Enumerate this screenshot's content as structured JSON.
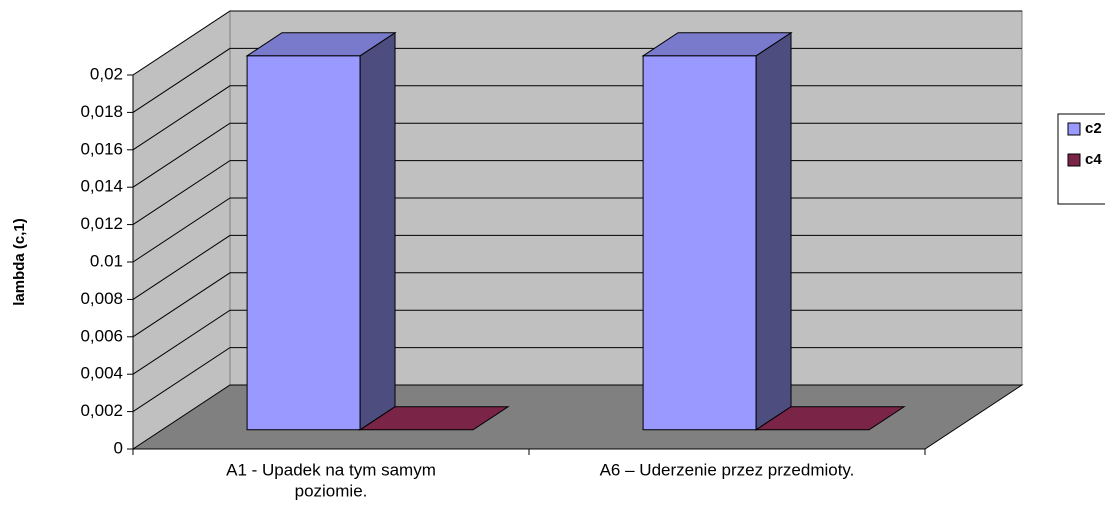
{
  "chart_data": {
    "type": "bar3d",
    "ylabel": "lambda (c,1)",
    "categories": [
      [
        "A1 - Upadek na tym samym",
        "poziomie."
      ],
      [
        "A6 – Uderzenie przez przedmioty."
      ]
    ],
    "series": [
      {
        "name": "c2",
        "color": "#9999ff",
        "values": [
          0.02,
          0.02
        ]
      },
      {
        "name": "c4",
        "color": "#7a2448",
        "values": [
          0,
          0
        ]
      }
    ],
    "ylim": [
      0,
      0.02
    ],
    "yticks": [
      0,
      {
        "value": 0.002,
        "label": "0,002"
      },
      {
        "value": 0.004,
        "label": "0,004"
      },
      {
        "value": 0.006,
        "label": "0,006"
      },
      {
        "value": 0.008,
        "label": "0,008"
      },
      0.01,
      {
        "value": 0.012,
        "label": "0,012"
      },
      {
        "value": 0.014,
        "label": "0,014"
      },
      {
        "value": 0.016,
        "label": "0,016"
      },
      {
        "value": 0.018,
        "label": "0,018"
      },
      {
        "value": 0.02,
        "label": "0,02"
      }
    ],
    "grid": true,
    "legend": "right"
  }
}
